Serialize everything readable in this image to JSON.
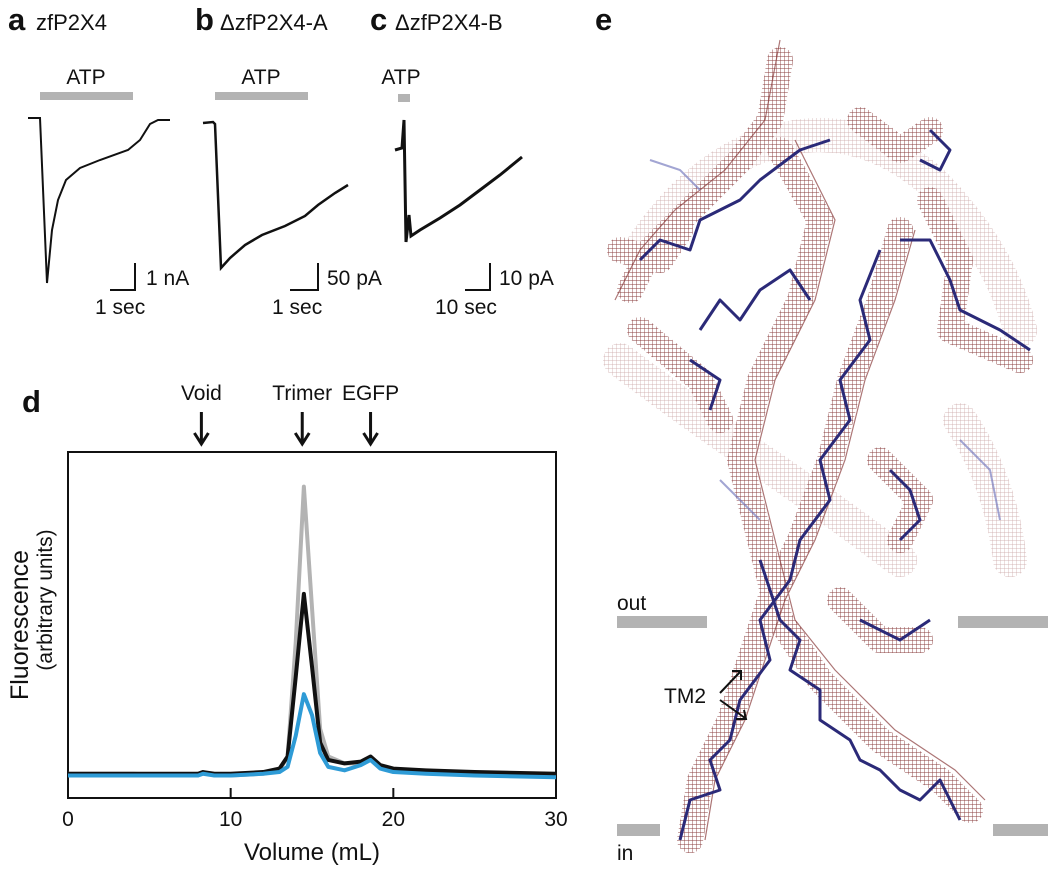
{
  "panels": {
    "a": {
      "label": "a",
      "title": "zfP2X4",
      "stimulus": "ATP",
      "scale_y": "1 nA",
      "scale_x": "1 sec"
    },
    "b": {
      "label": "b",
      "title": "ΔzfP2X4-A",
      "stimulus": "ATP",
      "scale_y": "50 pA",
      "scale_x": "1 sec"
    },
    "c": {
      "label": "c",
      "title": "ΔzfP2X4-B",
      "stimulus": "ATP",
      "scale_y": "10 pA",
      "scale_x": "10 sec"
    },
    "d": {
      "label": "d"
    },
    "e": {
      "label": "e",
      "out": "out",
      "in": "in",
      "tm": "TM2"
    }
  },
  "chart_data": {
    "type": "line",
    "xlabel": "Volume (mL)",
    "ylabel": "Fluorescence",
    "ylabel_sub": "(arbitrary units)",
    "x": [
      0,
      2,
      4,
      6,
      7,
      8,
      8.3,
      9,
      10,
      12,
      13,
      13.5,
      14,
      14.5,
      15,
      15.5,
      16,
      17,
      18,
      18.6,
      19.2,
      20,
      22,
      25,
      30
    ],
    "series": [
      {
        "color": "#b3b3b3",
        "values": [
          7,
          7,
          7,
          6.5,
          6.5,
          7,
          7.5,
          6.5,
          6.5,
          7,
          8,
          12,
          45,
          90,
          55,
          20,
          12,
          10,
          10,
          11,
          9,
          8,
          7.5,
          7,
          6.5
        ]
      },
      {
        "color": "#111111",
        "values": [
          7,
          7,
          7,
          7,
          7,
          7,
          7.5,
          7,
          7,
          7.5,
          8.5,
          12,
          35,
          59,
          38,
          16,
          11,
          10,
          10.5,
          12,
          9.5,
          8.5,
          8,
          7.5,
          7
        ]
      },
      {
        "color": "#2e9bd6",
        "values": [
          6.5,
          6.5,
          6.5,
          6.5,
          6.5,
          6.5,
          7,
          6.5,
          6.5,
          7,
          7.5,
          9,
          18,
          30,
          24,
          13,
          9,
          8,
          9.5,
          11,
          8.5,
          7.5,
          7,
          6.5,
          6
        ]
      }
    ],
    "annotations": [
      {
        "text": "Void",
        "x": 8.2
      },
      {
        "text": "Trimer",
        "x": 14.4
      },
      {
        "text": "EGFP",
        "x": 18.6
      }
    ],
    "xlim": [
      0,
      30
    ],
    "xticks": [
      0,
      10,
      20,
      30
    ],
    "ylim": [
      0,
      100
    ]
  }
}
